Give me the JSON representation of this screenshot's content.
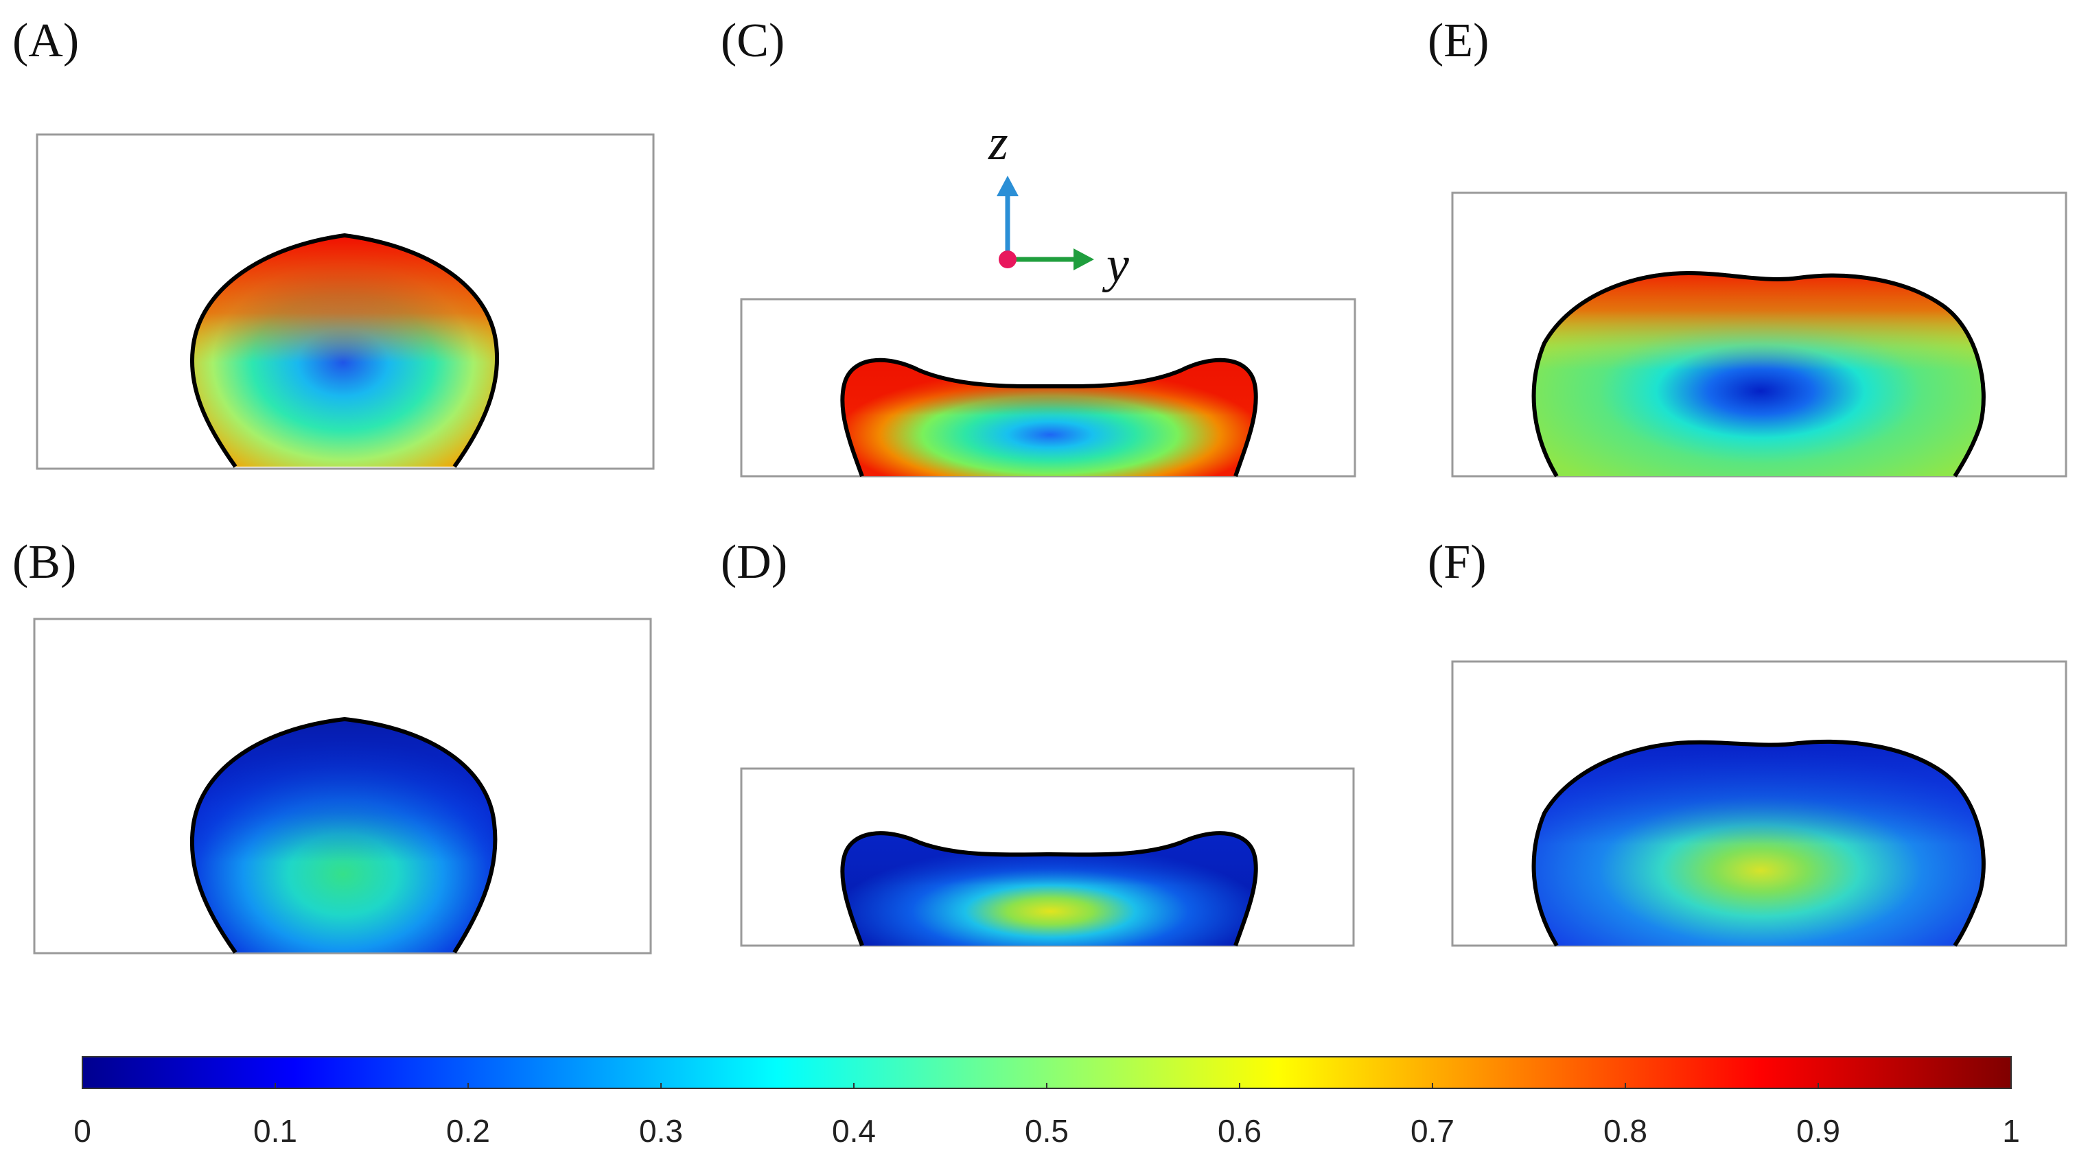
{
  "panels": [
    {
      "id": "A",
      "label": "(A)",
      "colors": {
        "outer": "#f4a300",
        "ring": "#a6f06a",
        "core": "#1f55e8",
        "top": "#f20000"
      }
    },
    {
      "id": "B",
      "label": "(B)",
      "colors": {
        "outer": "#071fc8",
        "ring": "#1296f2",
        "core": "#35e08a",
        "top": "#061aa8"
      }
    },
    {
      "id": "C",
      "label": "(C)",
      "colors": {
        "outer": "#f21d00",
        "ring": "#7af05a",
        "core": "#1e66f4",
        "top": "#ee1200"
      }
    },
    {
      "id": "D",
      "label": "(D)",
      "colors": {
        "outer": "#051fb8",
        "ring": "#1cc0ea",
        "core": "#e2e41e",
        "top": "#0725c8"
      }
    },
    {
      "id": "E",
      "label": "(E)",
      "colors": {
        "outer": "#8ee64a",
        "ring": "#1de3d0",
        "core": "#0421c6",
        "top": "#f01a00"
      }
    },
    {
      "id": "F",
      "label": "(F)",
      "colors": {
        "outer": "#1441e6",
        "ring": "#35d8c6",
        "core": "#d7e32a",
        "top": "#061ec2"
      }
    }
  ],
  "axes": {
    "vertical": "z",
    "horizontal": "y",
    "vertical_color": "#2b8fd6",
    "horizontal_color": "#1f9e3d",
    "origin_color": "#e8175d"
  },
  "colorbar": {
    "ticks": [
      "0",
      "0.1",
      "0.2",
      "0.3",
      "0.4",
      "0.5",
      "0.6",
      "0.7",
      "0.8",
      "0.9",
      "1"
    ],
    "min": 0,
    "max": 1,
    "colormap": "jet",
    "stops": [
      "#00008f",
      "#0000ff",
      "#00ffff",
      "#ffff00",
      "#ff0000",
      "#800000"
    ]
  }
}
